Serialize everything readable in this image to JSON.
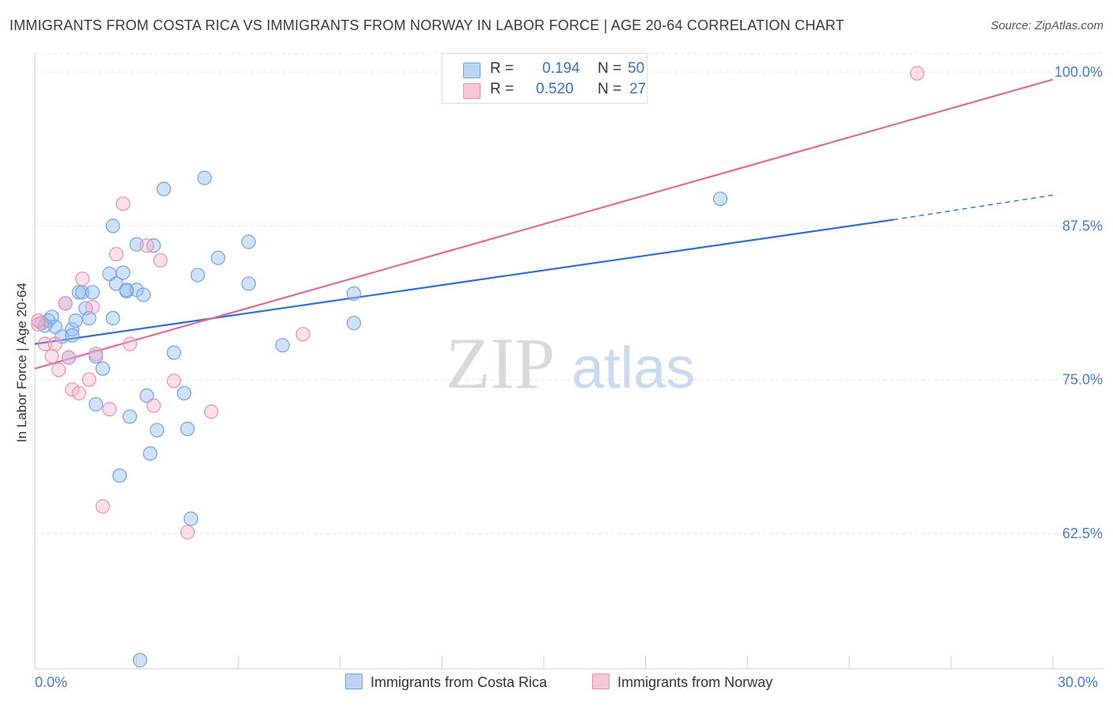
{
  "title": "IMMIGRANTS FROM COSTA RICA VS IMMIGRANTS FROM NORWAY IN LABOR FORCE | AGE 20-64 CORRELATION CHART",
  "source": "Source: ZipAtlas.com",
  "watermark": {
    "zip": "ZIP",
    "atlas": "atlas"
  },
  "legend": {
    "r_label": "R =",
    "n_label": "N =",
    "costa_rica": {
      "r": "0.194",
      "n": "50"
    },
    "norway": {
      "r": "0.520",
      "n": "27"
    }
  },
  "chart_data": {
    "type": "scatter",
    "xlabel": "",
    "ylabel": "In Labor Force | Age 20-64",
    "xlim": [
      0,
      30
    ],
    "ylim": [
      51.5,
      102
    ],
    "x_tick_labels": [
      "0.0%",
      "30.0%"
    ],
    "y_ticks": [
      62.5,
      75.0,
      87.5,
      100.0
    ],
    "y_tick_labels": [
      "62.5%",
      "75.0%",
      "87.5%",
      "100.0%"
    ],
    "colors": {
      "costa_rica": "#6fa3e8",
      "norway": "#f08db0",
      "costa_rica_line": "#2f6fd0",
      "norway_line": "#e06a97"
    },
    "series": [
      {
        "name": "Immigrants from Costa Rica",
        "key": "costa_rica",
        "points": [
          [
            0.2,
            79.6
          ],
          [
            0.4,
            79.8
          ],
          [
            0.5,
            80.1
          ],
          [
            0.6,
            79.3
          ],
          [
            0.8,
            78.5
          ],
          [
            1.0,
            76.8
          ],
          [
            1.1,
            79.1
          ],
          [
            1.2,
            79.8
          ],
          [
            0.9,
            81.2
          ],
          [
            1.3,
            82.1
          ],
          [
            1.4,
            82.1
          ],
          [
            1.5,
            80.8
          ],
          [
            1.6,
            80.0
          ],
          [
            1.7,
            82.1
          ],
          [
            1.8,
            76.9
          ],
          [
            1.8,
            73.0
          ],
          [
            2.0,
            75.9
          ],
          [
            2.2,
            83.6
          ],
          [
            2.3,
            80.0
          ],
          [
            2.3,
            87.5
          ],
          [
            2.4,
            82.8
          ],
          [
            2.5,
            67.2
          ],
          [
            2.6,
            83.7
          ],
          [
            2.7,
            82.2
          ],
          [
            2.8,
            72.0
          ],
          [
            3.0,
            82.3
          ],
          [
            3.0,
            86.0
          ],
          [
            3.2,
            81.9
          ],
          [
            3.3,
            73.7
          ],
          [
            3.4,
            69.0
          ],
          [
            3.5,
            85.9
          ],
          [
            3.6,
            70.9
          ],
          [
            3.8,
            90.5
          ],
          [
            4.1,
            77.2
          ],
          [
            4.4,
            73.9
          ],
          [
            4.5,
            71.0
          ],
          [
            4.6,
            63.7
          ],
          [
            4.8,
            83.5
          ],
          [
            5.0,
            91.4
          ],
          [
            5.4,
            84.9
          ],
          [
            6.3,
            86.2
          ],
          [
            6.3,
            82.8
          ],
          [
            7.3,
            77.8
          ],
          [
            9.4,
            82.0
          ],
          [
            9.4,
            79.6
          ],
          [
            20.2,
            89.7
          ],
          [
            3.1,
            52.2
          ],
          [
            0.3,
            79.4
          ],
          [
            1.1,
            78.6
          ],
          [
            2.7,
            82.3
          ]
        ]
      },
      {
        "name": "Immigrants from Norway",
        "key": "norway",
        "points": [
          [
            0.1,
            79.5
          ],
          [
            0.3,
            77.9
          ],
          [
            0.5,
            76.9
          ],
          [
            0.6,
            77.9
          ],
          [
            0.7,
            75.8
          ],
          [
            0.9,
            81.2
          ],
          [
            1.0,
            76.8
          ],
          [
            1.1,
            74.2
          ],
          [
            1.3,
            73.9
          ],
          [
            1.4,
            83.2
          ],
          [
            1.6,
            75.0
          ],
          [
            1.7,
            80.9
          ],
          [
            1.8,
            77.1
          ],
          [
            2.0,
            64.7
          ],
          [
            2.2,
            72.6
          ],
          [
            2.4,
            85.2
          ],
          [
            2.6,
            89.3
          ],
          [
            2.8,
            77.9
          ],
          [
            3.3,
            85.9
          ],
          [
            3.5,
            72.9
          ],
          [
            3.7,
            84.7
          ],
          [
            4.1,
            74.9
          ],
          [
            4.5,
            62.6
          ],
          [
            5.2,
            72.4
          ],
          [
            7.9,
            78.7
          ],
          [
            26.0,
            99.9
          ],
          [
            0.1,
            79.8
          ]
        ]
      }
    ],
    "trend_lines": [
      {
        "key": "costa_rica",
        "x": [
          0,
          25.3
        ],
        "y": [
          77.9,
          88.0
        ],
        "dashed_to": [
          30,
          90.0
        ]
      },
      {
        "key": "norway",
        "x": [
          0,
          30
        ],
        "y": [
          75.9,
          99.4
        ]
      }
    ]
  }
}
